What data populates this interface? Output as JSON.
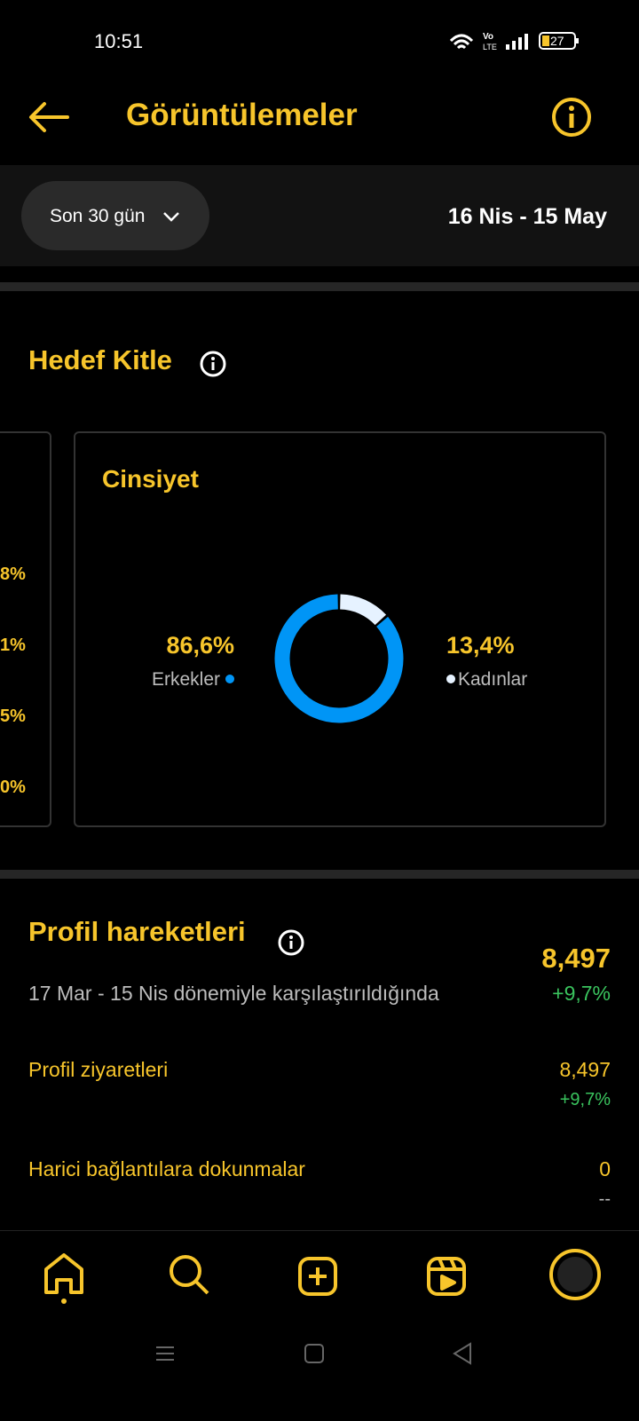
{
  "status_bar": {
    "time": "10:51",
    "battery": "27"
  },
  "header": {
    "title": "Görüntülemeler"
  },
  "filter": {
    "range": "Son 30 gün",
    "dates": "16 Nis - 15 May"
  },
  "audience": {
    "title": "Hedef Kitle",
    "partial_card_values": [
      "8%",
      "1%",
      "5%",
      "0%"
    ],
    "gender": {
      "title": "Cinsiyet",
      "segments": [
        {
          "label": "Erkekler",
          "value": 86.6,
          "value_label": "86,6%",
          "color": "#0095f6"
        },
        {
          "label": "Kadınlar",
          "value": 13.4,
          "value_label": "13,4%",
          "color": "#e6f2ff"
        }
      ]
    }
  },
  "profile_activity": {
    "title": "Profil hareketleri",
    "total": "8,497",
    "comparison": "17 Mar - 15 Nis dönemiyle karşılaştırıldığında",
    "change": "+9,7%",
    "rows": [
      {
        "label": "Profil ziyaretleri",
        "value": "8,497",
        "change": "+9,7%"
      },
      {
        "label": "Harici bağlantılara dokunmalar",
        "value": "0",
        "change": "--"
      }
    ]
  }
}
